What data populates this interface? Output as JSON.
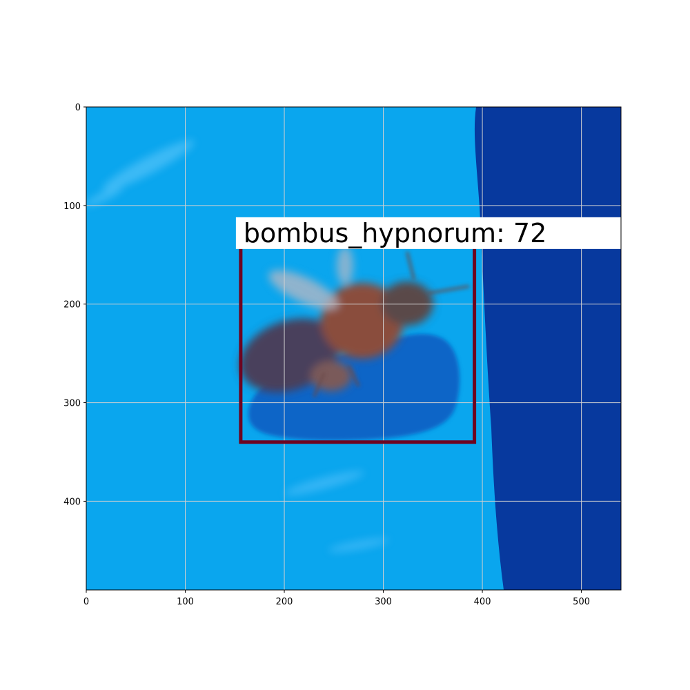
{
  "image": {
    "subject": "bee on blue surface",
    "colors": {
      "background_light": "#0aa6ee",
      "background_dark": "#07399e",
      "bbox": "#6e0420",
      "grid": "#d0d0d0"
    }
  },
  "axes": {
    "xlim": [
      0,
      540
    ],
    "ylim": [
      490,
      0
    ],
    "xticks": [
      "0",
      "100",
      "200",
      "300",
      "400",
      "500"
    ],
    "yticks": [
      "0",
      "100",
      "200",
      "300",
      "400"
    ],
    "grid": true
  },
  "detection": {
    "label": "bombus_hypnorum: 72",
    "box": {
      "x_min": 156,
      "y_min": 135,
      "x_max": 392,
      "y_max": 340
    }
  }
}
